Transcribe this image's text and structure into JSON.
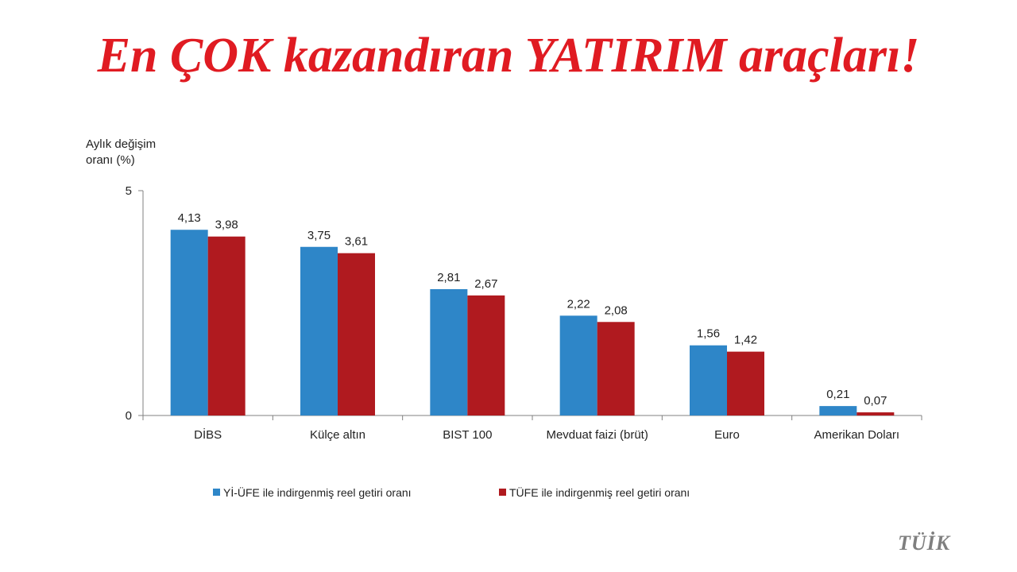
{
  "slide": {
    "title": "En ÇOK kazandıran YATIRIM araçları!",
    "source": "TÜİK"
  },
  "colors": {
    "title": "#e01b22",
    "series_1": "#2e86c8",
    "series_2": "#b01a1f",
    "axis": "#808080",
    "text": "#222222"
  },
  "chart_data": {
    "type": "bar",
    "title": "",
    "ylabel": "Aylık değişim oranı (%)",
    "ylabel_lines": [
      "Aylık değişim",
      "oranı (%)"
    ],
    "xlabel": "",
    "ylim": [
      0,
      5
    ],
    "yticks": [
      "0",
      "5"
    ],
    "grid": false,
    "legend_position": "bottom",
    "categories": [
      "DİBS",
      "Külçe altın",
      "BIST 100",
      "Mevduat faizi (brüt)",
      "Euro",
      "Amerikan Doları"
    ],
    "series": [
      {
        "name": "Yİ-ÜFE ile indirgenmiş reel getiri oranı",
        "values": [
          4.13,
          3.75,
          2.81,
          2.22,
          1.56,
          0.21
        ],
        "labels": [
          "4,13",
          "3,75",
          "2,81",
          "2,22",
          "1,56",
          "0,21"
        ]
      },
      {
        "name": "TÜFE ile indirgenmiş reel getiri oranı",
        "values": [
          3.98,
          3.61,
          2.67,
          2.08,
          1.42,
          0.07
        ],
        "labels": [
          "3,98",
          "3,61",
          "2,67",
          "2,08",
          "1,42",
          "0,07"
        ]
      }
    ]
  }
}
